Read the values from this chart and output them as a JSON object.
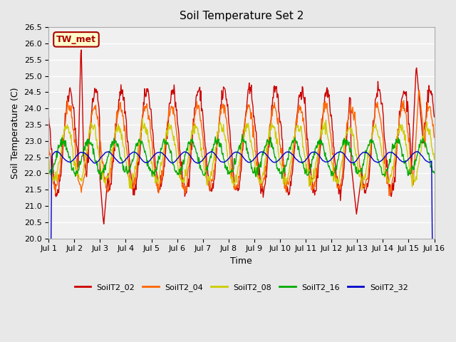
{
  "title": "Soil Temperature Set 2",
  "xlabel": "Time",
  "ylabel": "Soil Temperature (C)",
  "ylim": [
    20.0,
    26.5
  ],
  "yticks": [
    20.0,
    20.5,
    21.0,
    21.5,
    22.0,
    22.5,
    23.0,
    23.5,
    24.0,
    24.5,
    25.0,
    25.5,
    26.0,
    26.5
  ],
  "xtick_labels": [
    "Jul 1",
    "Jul 2",
    "Jul 3",
    "Jul 4",
    "Jul 5",
    "Jul 6",
    "Jul 7",
    "Jul 8",
    "Jul 9",
    "Jul 10",
    "Jul 11",
    "Jul 12",
    "Jul 13",
    "Jul 14",
    "Jul 15",
    "Jul 16"
  ],
  "colors": {
    "SoilT2_02": "#cc0000",
    "SoilT2_04": "#ff6600",
    "SoilT2_08": "#cccc00",
    "SoilT2_16": "#00aa00",
    "SoilT2_32": "#0000cc"
  },
  "legend_label": "TW_met",
  "legend_box_color": "#ffffcc",
  "legend_box_border": "#aa0000",
  "background_color": "#e8e8e8",
  "plot_bg_color": "#f0f0f0",
  "n_days": 15,
  "points_per_day": 48
}
